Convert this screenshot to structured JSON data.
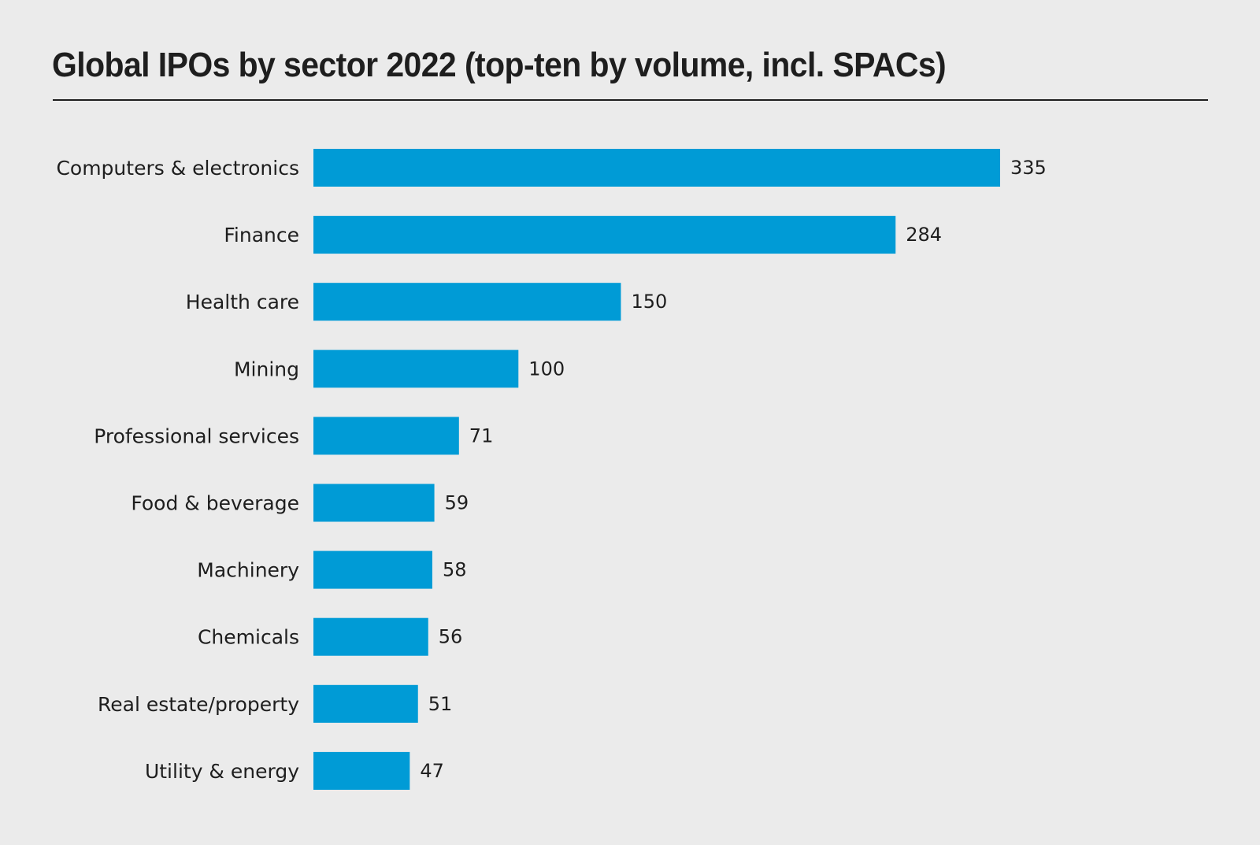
{
  "chart_data": {
    "type": "bar",
    "orientation": "horizontal",
    "title": "Global IPOs by sector 2022 (top-ten by volume, incl. SPACs)",
    "xlabel": "",
    "ylabel": "",
    "xlim": [
      0,
      335
    ],
    "grid": false,
    "legend": "none",
    "categories": [
      "Computers & electronics",
      "Finance",
      "Health care",
      "Mining",
      "Professional services",
      "Food & beverage",
      "Machinery",
      "Chemicals",
      "Real estate/property",
      "Utility & energy"
    ],
    "values": [
      335,
      284,
      150,
      100,
      71,
      59,
      58,
      56,
      51,
      47
    ],
    "bar_color": "#009bd6"
  }
}
